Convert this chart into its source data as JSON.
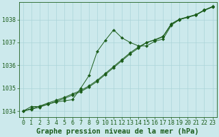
{
  "title": "Graphe pression niveau de la mer (hPa)",
  "background_color": "#cce9ec",
  "grid_color": "#aad4d8",
  "line_color": "#1a5c1a",
  "xlim": [
    -0.5,
    23.5
  ],
  "ylim": [
    1033.75,
    1038.75
  ],
  "yticks": [
    1034,
    1035,
    1036,
    1037,
    1038
  ],
  "xticks": [
    0,
    1,
    2,
    3,
    4,
    5,
    6,
    7,
    8,
    9,
    10,
    11,
    12,
    13,
    14,
    15,
    16,
    17,
    18,
    19,
    20,
    21,
    22,
    23
  ],
  "series_noisy": {
    "x": [
      0,
      1,
      2,
      3,
      4,
      5,
      6,
      7,
      8,
      9,
      10,
      11,
      12,
      13,
      14,
      15,
      16,
      17,
      18,
      19,
      20,
      21,
      22,
      23
    ],
    "y": [
      1034.0,
      1034.2,
      1034.2,
      1034.3,
      1034.4,
      1034.45,
      1034.5,
      1035.0,
      1035.55,
      1036.6,
      1037.1,
      1037.55,
      1037.2,
      1037.0,
      1036.85,
      1036.85,
      1037.05,
      1037.15,
      1037.75,
      1038.0,
      1038.1,
      1038.2,
      1038.4,
      1038.55
    ]
  },
  "series_smooth1": {
    "x": [
      0,
      1,
      2,
      3,
      4,
      5,
      6,
      7,
      8,
      9,
      10,
      11,
      12,
      13,
      14,
      15,
      16,
      17,
      18,
      19,
      20,
      21,
      22,
      23
    ],
    "y": [
      1034.0,
      1034.08,
      1034.17,
      1034.3,
      1034.42,
      1034.55,
      1034.7,
      1034.85,
      1035.05,
      1035.3,
      1035.6,
      1035.9,
      1036.2,
      1036.5,
      1036.75,
      1037.0,
      1037.1,
      1037.25,
      1037.8,
      1038.0,
      1038.1,
      1038.2,
      1038.4,
      1038.55
    ]
  },
  "series_smooth2": {
    "x": [
      0,
      1,
      2,
      3,
      4,
      5,
      6,
      7,
      8,
      9,
      10,
      11,
      12,
      13,
      14,
      15,
      16,
      17,
      18,
      19,
      20,
      21,
      22,
      23
    ],
    "y": [
      1034.0,
      1034.11,
      1034.22,
      1034.35,
      1034.47,
      1034.6,
      1034.75,
      1034.9,
      1035.1,
      1035.35,
      1035.65,
      1035.95,
      1036.25,
      1036.55,
      1036.8,
      1037.0,
      1037.12,
      1037.27,
      1037.82,
      1038.02,
      1038.12,
      1038.22,
      1038.42,
      1038.57
    ]
  },
  "title_fontsize": 7.5,
  "tick_fontsize": 6,
  "title_color": "#1a5c1a"
}
